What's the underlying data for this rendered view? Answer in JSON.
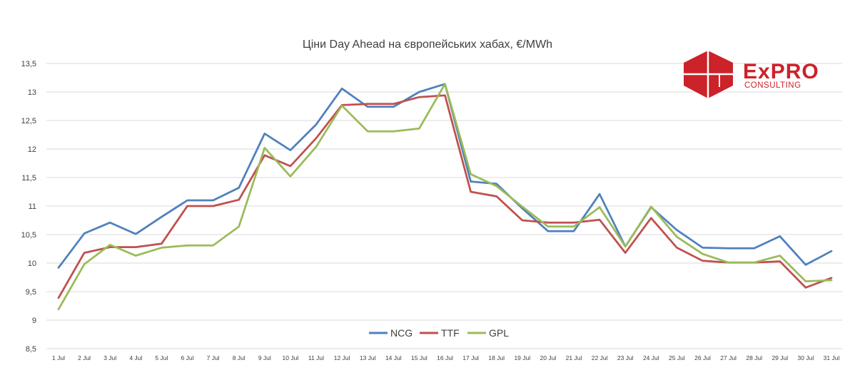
{
  "chart_data": {
    "type": "line",
    "title": "Ціни Day Ahead на європейських хабах, €/MWh",
    "xlabel": "",
    "ylabel": "",
    "categories": [
      "1 Jul",
      "2 Jul",
      "3 Jul",
      "4 Jul",
      "5 Jul",
      "6 Jul",
      "7 Jul",
      "8 Jul",
      "9 Jul",
      "10 Jul",
      "11 Jul",
      "12 Jul",
      "13 Jul",
      "14 Jul",
      "15 Jul",
      "16 Jul",
      "17 Jul",
      "18 Jul",
      "19 Jul",
      "20 Jul",
      "21 Jul",
      "22 Jul",
      "23 Jul",
      "24 Jul",
      "25 Jul",
      "26 Jul",
      "27 Jul",
      "28 Jul",
      "29 Jul",
      "30 Jul",
      "31 Jul"
    ],
    "ylim": [
      8.5,
      13.5
    ],
    "yticks": [
      "8,5",
      "9",
      "9,5",
      "10",
      "10,5",
      "11",
      "11,5",
      "12",
      "12,5",
      "13",
      "13,5"
    ],
    "grid": true,
    "legend_position": "bottom",
    "series": [
      {
        "name": "NCG",
        "color": "#4f81bd",
        "values": [
          9.92,
          10.52,
          10.71,
          10.51,
          10.81,
          11.1,
          11.1,
          11.32,
          12.27,
          11.98,
          12.43,
          13.06,
          12.74,
          12.74,
          13.0,
          13.14,
          11.43,
          11.39,
          10.96,
          10.56,
          10.56,
          11.21,
          10.29,
          10.98,
          10.58,
          10.27,
          10.26,
          10.26,
          10.47,
          9.97,
          10.21
        ]
      },
      {
        "name": "TTF",
        "color": "#c0504d",
        "values": [
          9.39,
          10.18,
          10.28,
          10.28,
          10.34,
          11.0,
          11.0,
          11.11,
          11.89,
          11.7,
          12.19,
          12.77,
          12.79,
          12.79,
          12.91,
          12.94,
          11.25,
          11.17,
          10.75,
          10.71,
          10.71,
          10.76,
          10.18,
          10.79,
          10.27,
          10.04,
          10.01,
          10.01,
          10.03,
          9.57,
          9.74
        ]
      },
      {
        "name": "GPL",
        "color": "#9bbb59",
        "values": [
          9.19,
          9.98,
          10.32,
          10.13,
          10.27,
          10.31,
          10.31,
          10.64,
          12.02,
          11.52,
          12.04,
          12.76,
          12.31,
          12.31,
          12.36,
          13.14,
          11.56,
          11.35,
          10.99,
          10.64,
          10.64,
          10.98,
          10.29,
          10.99,
          10.46,
          10.16,
          10.01,
          10.01,
          10.13,
          9.68,
          9.7
        ]
      }
    ]
  },
  "logo": {
    "brand": "ExPRO",
    "tagline": "CONSULTING",
    "color": "#cc2229"
  }
}
